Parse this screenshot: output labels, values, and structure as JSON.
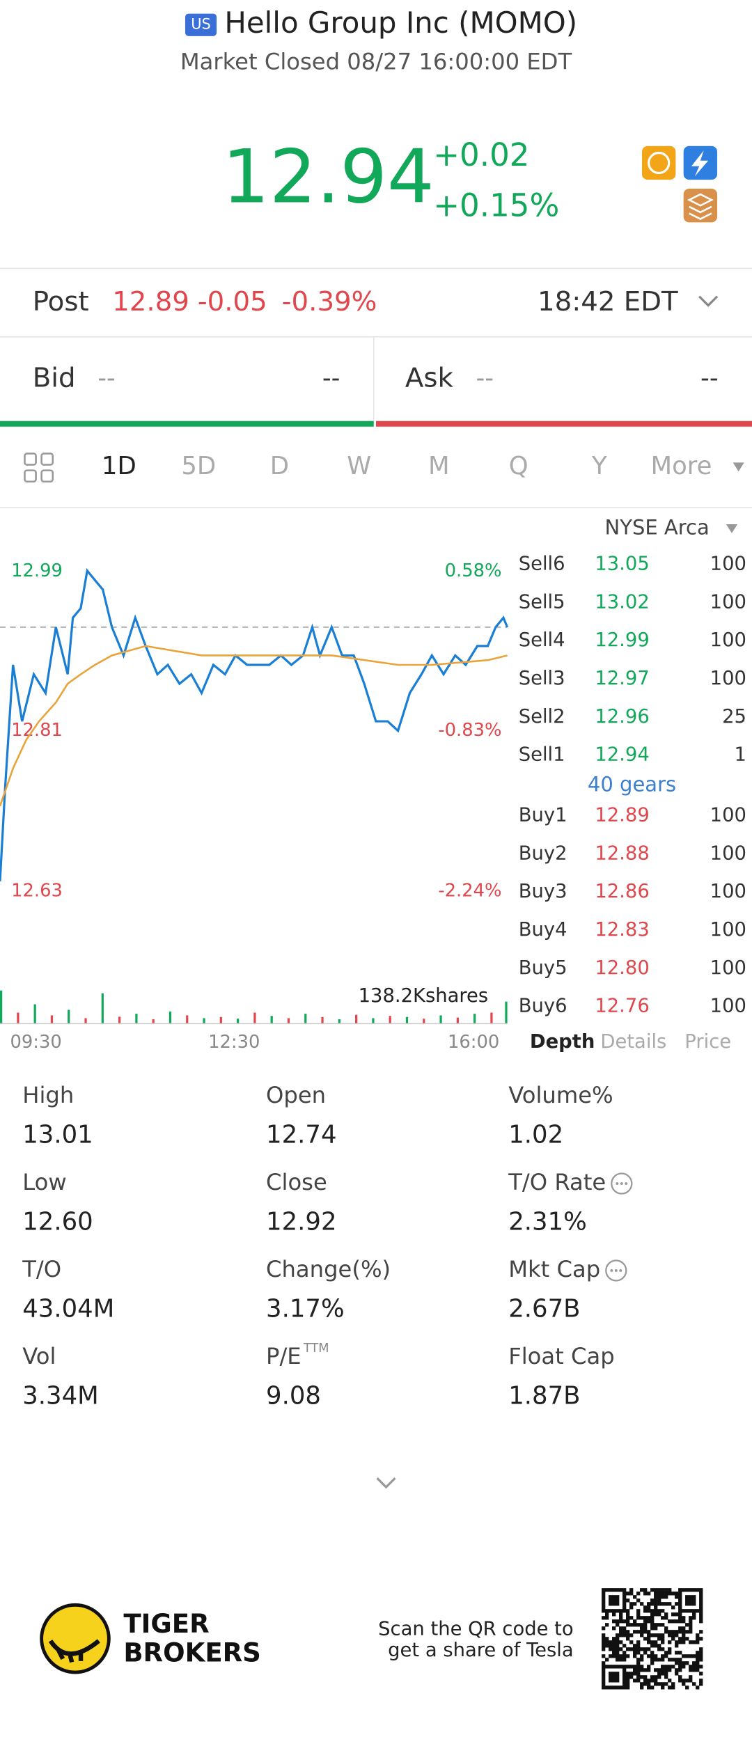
{
  "header": {
    "badge": "US",
    "title": "Hello Group Inc (MOMO)",
    "status": "Market Closed 08/27 16:00:00 EDT"
  },
  "quote": {
    "price": "12.94",
    "change": "+0.02",
    "change_pct": "+0.15%"
  },
  "post": {
    "label": "Post",
    "price": "12.89",
    "change": "-0.05",
    "change_pct": "-0.39%",
    "time": "18:42 EDT"
  },
  "bid_ask": {
    "bid_label": "Bid",
    "bid_price": "--",
    "bid_size": "--",
    "ask_label": "Ask",
    "ask_price": "--",
    "ask_size": "--"
  },
  "tabs": [
    "1D",
    "5D",
    "D",
    "W",
    "M",
    "Q",
    "Y",
    "More"
  ],
  "exchange": "NYSE Arca",
  "chart_data": {
    "type": "line",
    "x": [
      0,
      4,
      10,
      17,
      26,
      35,
      43,
      52,
      56,
      62,
      67,
      73,
      79,
      86,
      95,
      104,
      112,
      121,
      129,
      138,
      147,
      155,
      164,
      173,
      181,
      190,
      198,
      207,
      216,
      224,
      233,
      240,
      246,
      255,
      263,
      272,
      280,
      289,
      298,
      306,
      315,
      324,
      332,
      341,
      350,
      358,
      367,
      375,
      381,
      387,
      390
    ],
    "series": [
      {
        "color": "#1a7fd4",
        "values": [
          12.65,
          12.75,
          12.88,
          12.82,
          12.87,
          12.85,
          12.92,
          12.87,
          12.93,
          12.94,
          12.98,
          12.97,
          12.96,
          12.92,
          12.89,
          12.93,
          12.9,
          12.87,
          12.88,
          12.86,
          12.87,
          12.85,
          12.88,
          12.87,
          12.89,
          12.88,
          12.88,
          12.88,
          12.89,
          12.88,
          12.89,
          12.92,
          12.89,
          12.92,
          12.89,
          12.89,
          12.86,
          12.82,
          12.82,
          12.81,
          12.85,
          12.87,
          12.89,
          12.87,
          12.89,
          12.88,
          12.9,
          12.9,
          12.92,
          12.93,
          12.92
        ]
      },
      {
        "color": "#e8a33a",
        "x": [
          0,
          10,
          20,
          30,
          43,
          52,
          62,
          73,
          86,
          112,
          155,
          207,
          255,
          306,
          332,
          375,
          390
        ],
        "values": [
          12.73,
          12.77,
          12.8,
          12.82,
          12.84,
          12.86,
          12.87,
          12.88,
          12.89,
          12.9,
          12.89,
          12.89,
          12.89,
          12.88,
          12.88,
          12.885,
          12.89
        ]
      }
    ],
    "ylim": [
      12.63,
      12.99
    ],
    "yticks": [
      12.99,
      12.81,
      12.63
    ],
    "y2lim": [
      -2.24,
      0.58
    ],
    "y2ticks": [
      {
        "value": 0.58,
        "label": "0.58%"
      },
      {
        "value": -0.83,
        "label": "-0.83%"
      },
      {
        "value": -2.24,
        "label": "-2.24%"
      }
    ],
    "reference_line": 12.92,
    "xlim": [
      0,
      390
    ],
    "xticks": [
      {
        "value": 0,
        "label": "09:30"
      },
      {
        "value": 180,
        "label": "12:30"
      },
      {
        "value": 390,
        "label": "16:00"
      }
    ],
    "volume": {
      "label": "138.2Kshares",
      "ylim": [
        0,
        138.2
      ],
      "x": [
        0,
        13,
        26,
        39,
        52,
        65,
        78,
        91,
        104,
        117,
        130,
        143,
        156,
        169,
        182,
        195,
        208,
        221,
        234,
        247,
        260,
        273,
        286,
        299,
        312,
        325,
        338,
        351,
        364,
        377,
        390
      ],
      "values": [
        120,
        40,
        70,
        30,
        50,
        20,
        110,
        25,
        36,
        16,
        44,
        30,
        20,
        24,
        18,
        40,
        28,
        20,
        36,
        24,
        16,
        32,
        20,
        28,
        24,
        18,
        30,
        22,
        36,
        40,
        80
      ],
      "colors": [
        "#12a85a",
        "#e0474c"
      ]
    }
  },
  "order_book": {
    "sells": [
      {
        "label": "Sell6",
        "price": "13.05",
        "size": "100"
      },
      {
        "label": "Sell5",
        "price": "13.02",
        "size": "100"
      },
      {
        "label": "Sell4",
        "price": "12.99",
        "size": "100"
      },
      {
        "label": "Sell3",
        "price": "12.97",
        "size": "100"
      },
      {
        "label": "Sell2",
        "price": "12.96",
        "size": "25"
      },
      {
        "label": "Sell1",
        "price": "12.94",
        "size": "1"
      }
    ],
    "note": "40 gears",
    "buys": [
      {
        "label": "Buy1",
        "price": "12.89",
        "size": "100"
      },
      {
        "label": "Buy2",
        "price": "12.88",
        "size": "100"
      },
      {
        "label": "Buy3",
        "price": "12.86",
        "size": "100"
      },
      {
        "label": "Buy4",
        "price": "12.83",
        "size": "100"
      },
      {
        "label": "Buy5",
        "price": "12.80",
        "size": "100"
      },
      {
        "label": "Buy6",
        "price": "12.76",
        "size": "100"
      }
    ],
    "tabs": [
      "Depth",
      "Details",
      "Price"
    ]
  },
  "stats": [
    {
      "label": "High",
      "value": "13.01"
    },
    {
      "label": "Open",
      "value": "12.74"
    },
    {
      "label": "Volume%",
      "value": "1.02"
    },
    {
      "label": "Low",
      "value": "12.60"
    },
    {
      "label": "Close",
      "value": "12.92"
    },
    {
      "label": "T/O Rate",
      "value": "2.31%"
    },
    {
      "label": "T/O",
      "value": "43.04M"
    },
    {
      "label": "Change(%)",
      "value": "3.17%"
    },
    {
      "label": "Mkt Cap",
      "value": "2.67B"
    },
    {
      "label": "Vol",
      "value": "3.34M"
    },
    {
      "label": "P/E",
      "sup": "TTM",
      "value": "9.08"
    },
    {
      "label": "Float Cap",
      "value": "1.87B"
    }
  ],
  "footer": {
    "brand": [
      "TIGER",
      "BROKERS"
    ],
    "promo": [
      "Scan the QR code to",
      "get a share of Tesla"
    ]
  }
}
